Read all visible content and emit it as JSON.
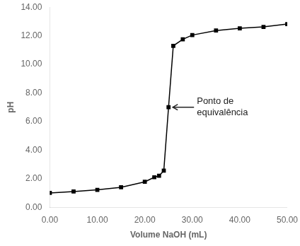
{
  "chart_data": {
    "type": "line",
    "x": [
      0.0,
      5.0,
      10.0,
      15.0,
      20.0,
      22.0,
      23.0,
      24.0,
      25.0,
      26.0,
      28.0,
      30.0,
      35.0,
      40.0,
      45.0,
      50.0
    ],
    "values": [
      1.0,
      1.1,
      1.22,
      1.4,
      1.78,
      2.1,
      2.2,
      2.56,
      7.0,
      11.3,
      11.75,
      12.05,
      12.37,
      12.52,
      12.62,
      12.82
    ],
    "color": "#000000",
    "marker": "square",
    "xlabel": "Volume NaOH (mL)",
    "ylabel": "pH",
    "xlim": [
      0.0,
      50.0
    ],
    "ylim": [
      0.0,
      14.0
    ],
    "xticks": [
      {
        "value": 0,
        "label": "0.00"
      },
      {
        "value": 10,
        "label": "10.00"
      },
      {
        "value": 20,
        "label": "20.00"
      },
      {
        "value": 30,
        "label": "30.00"
      },
      {
        "value": 40,
        "label": "40.00"
      },
      {
        "value": 50,
        "label": "50.00"
      }
    ],
    "yticks": [
      {
        "value": 0,
        "label": "0.00"
      },
      {
        "value": 2,
        "label": "2.00"
      },
      {
        "value": 4,
        "label": "4.00"
      },
      {
        "value": 6,
        "label": "6.00"
      },
      {
        "value": 8,
        "label": "8.00"
      },
      {
        "value": 10,
        "label": "10.00"
      },
      {
        "value": 12,
        "label": "12.00"
      },
      {
        "value": 14,
        "label": "14.00"
      }
    ],
    "annotations": [
      {
        "text": "Ponto de\nequivalência",
        "x": 25.0,
        "y": 7.0
      }
    ],
    "grid": false
  }
}
